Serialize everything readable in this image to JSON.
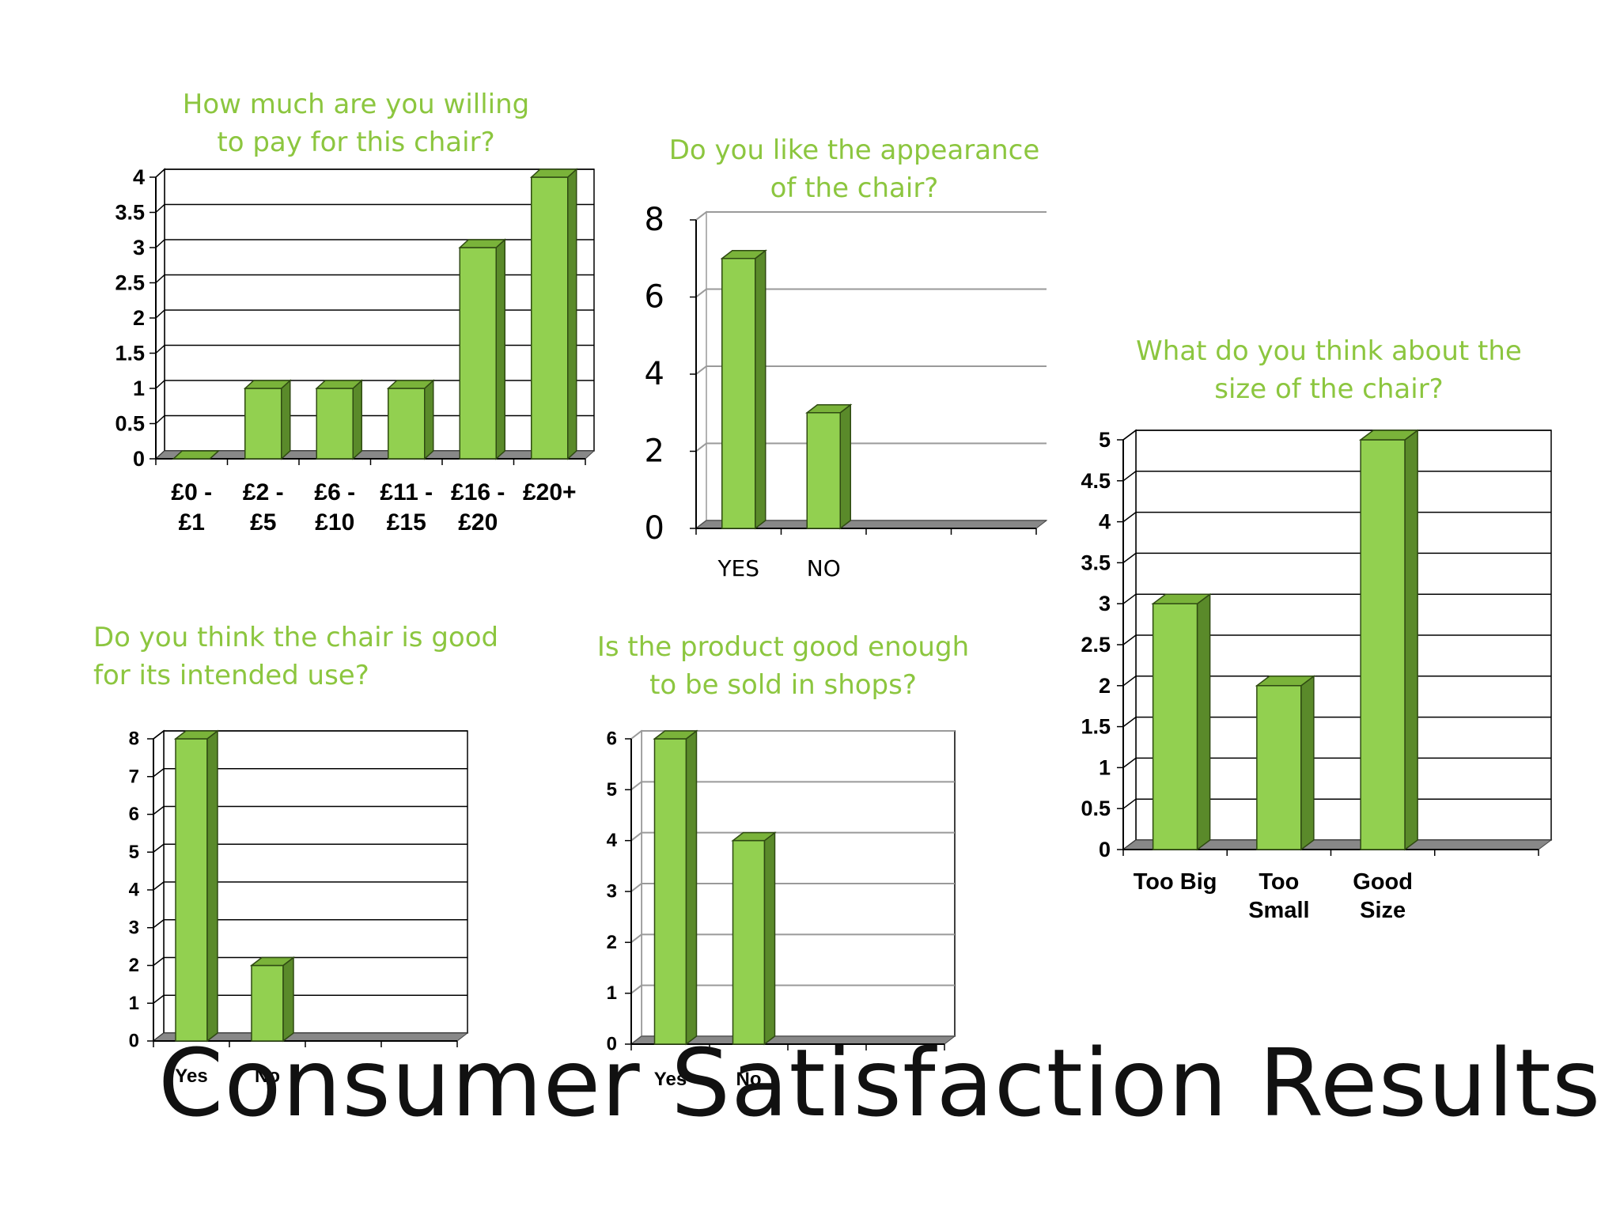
{
  "slide": {
    "title": "Consumer Satisfaction Results",
    "accent_color": "#8cc63f",
    "bar_color": "#92d050",
    "bar_side_color": "#5a8a2a",
    "floor_color": "#888888"
  },
  "chart_data": [
    {
      "id": "price",
      "type": "bar",
      "title": "How much are you willing\nto pay for this chair?",
      "categories": [
        "£0 -\n£1",
        "£2 -\n£5",
        "£6 -\n£10",
        "£11 -\n£15",
        "£16 -\n£20",
        "£20+"
      ],
      "values": [
        0,
        1,
        1,
        1,
        3,
        4
      ],
      "ylim": [
        0,
        4
      ],
      "yticks": [
        0,
        0.5,
        1,
        1.5,
        2,
        2.5,
        3,
        3.5,
        4
      ],
      "grid": true,
      "style": "3d"
    },
    {
      "id": "appearance",
      "type": "bar",
      "title": "Do you like the appearance\nof the chair?",
      "categories": [
        "YES",
        "NO",
        "",
        ""
      ],
      "values": [
        7,
        3,
        null,
        null
      ],
      "ylim": [
        0,
        8
      ],
      "yticks": [
        0,
        2,
        4,
        6,
        8
      ],
      "grid": true,
      "style": "3d"
    },
    {
      "id": "size",
      "type": "bar",
      "title": "What do you think about the\nsize of the chair?",
      "categories": [
        "Too Big",
        "Too\nSmall",
        "Good\nSize",
        ""
      ],
      "values": [
        3,
        2,
        5,
        null
      ],
      "ylim": [
        0,
        5
      ],
      "yticks": [
        0,
        0.5,
        1,
        1.5,
        2,
        2.5,
        3,
        3.5,
        4,
        4.5,
        5
      ],
      "grid": true,
      "style": "3d"
    },
    {
      "id": "use",
      "type": "bar",
      "title": "Do you think the chair is good\nfor its intended use?",
      "categories": [
        "Yes",
        "No",
        "",
        ""
      ],
      "values": [
        8,
        2,
        null,
        null
      ],
      "ylim": [
        0,
        8
      ],
      "yticks": [
        0,
        1,
        2,
        3,
        4,
        5,
        6,
        7,
        8
      ],
      "grid": true,
      "style": "3d"
    },
    {
      "id": "shops",
      "type": "bar",
      "title": "Is the product good enough\nto be sold in shops?",
      "categories": [
        "Yes",
        "No",
        "",
        ""
      ],
      "values": [
        6,
        4,
        null,
        null
      ],
      "ylim": [
        0,
        6
      ],
      "yticks": [
        0,
        1,
        2,
        3,
        4,
        5,
        6
      ],
      "grid": true,
      "style": "3d"
    }
  ]
}
